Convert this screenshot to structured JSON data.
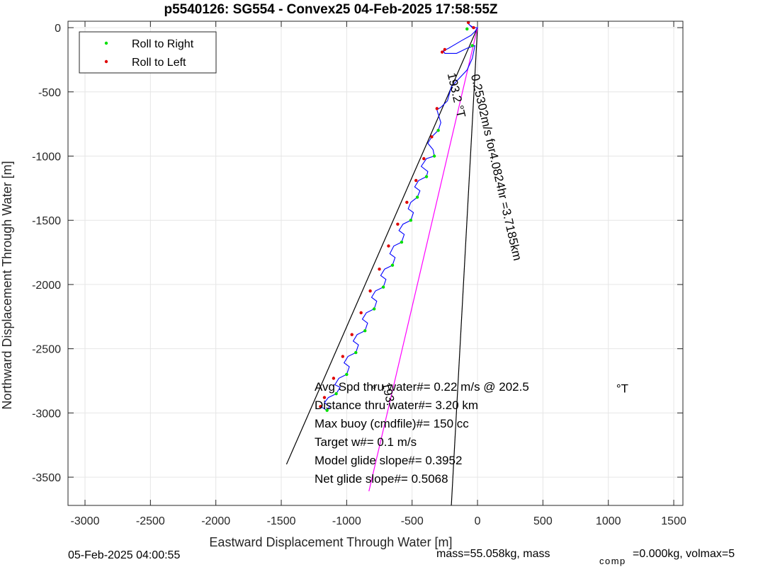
{
  "chart_data": {
    "type": "line",
    "title": "p5540126: SG554 - Convex25 04-Feb-2025 17:58:55Z",
    "xlabel": "Eastward Displacement Through Water [m]",
    "ylabel": "Northward Displacement Through Water [m]",
    "xlim": [
      -3130,
      1570
    ],
    "ylim": [
      -3720,
      50
    ],
    "xticks": [
      -3000,
      -2500,
      -2000,
      -1500,
      -1000,
      -500,
      0,
      500,
      1000,
      1500
    ],
    "yticks": [
      0,
      -500,
      -1000,
      -1500,
      -2000,
      -2500,
      -3000,
      -3500
    ],
    "grid": true,
    "legend_position": "top-left",
    "legend": [
      {
        "label": "Roll to Right",
        "color": "#00e000"
      },
      {
        "label": "Roll to Left",
        "color": "#e00000"
      }
    ],
    "track_color": "#0000ff",
    "track": [
      [
        -30,
        0
      ],
      [
        -60,
        20
      ],
      [
        -75,
        40
      ],
      [
        -70,
        30
      ],
      [
        -55,
        15
      ],
      [
        -40,
        0
      ],
      [
        -10,
        0
      ],
      [
        0,
        0
      ],
      [
        -20,
        -30
      ],
      [
        -50,
        -60
      ],
      [
        -120,
        -100
      ],
      [
        -220,
        -160
      ],
      [
        -260,
        -180
      ],
      [
        -250,
        -200
      ],
      [
        -160,
        -200
      ],
      [
        -80,
        -160
      ],
      [
        -20,
        -140
      ],
      [
        -40,
        -240
      ],
      [
        -80,
        -330
      ],
      [
        -200,
        -460
      ],
      [
        -230,
        -570
      ],
      [
        -280,
        -620
      ],
      [
        -310,
        -640
      ],
      [
        -280,
        -740
      ],
      [
        -300,
        -800
      ],
      [
        -350,
        -850
      ],
      [
        -380,
        -900
      ],
      [
        -340,
        -950
      ],
      [
        -330,
        -1000
      ],
      [
        -390,
        -1020
      ],
      [
        -430,
        -1080
      ],
      [
        -380,
        -1120
      ],
      [
        -390,
        -1160
      ],
      [
        -450,
        -1190
      ],
      [
        -480,
        -1240
      ],
      [
        -440,
        -1270
      ],
      [
        -460,
        -1320
      ],
      [
        -510,
        -1360
      ],
      [
        -530,
        -1410
      ],
      [
        -490,
        -1440
      ],
      [
        -510,
        -1500
      ],
      [
        -570,
        -1530
      ],
      [
        -600,
        -1580
      ],
      [
        -560,
        -1610
      ],
      [
        -580,
        -1670
      ],
      [
        -640,
        -1700
      ],
      [
        -670,
        -1760
      ],
      [
        -630,
        -1790
      ],
      [
        -650,
        -1850
      ],
      [
        -710,
        -1880
      ],
      [
        -740,
        -1930
      ],
      [
        -700,
        -1960
      ],
      [
        -720,
        -2020
      ],
      [
        -780,
        -2050
      ],
      [
        -810,
        -2100
      ],
      [
        -770,
        -2130
      ],
      [
        -790,
        -2190
      ],
      [
        -850,
        -2220
      ],
      [
        -880,
        -2270
      ],
      [
        -840,
        -2300
      ],
      [
        -860,
        -2360
      ],
      [
        -920,
        -2390
      ],
      [
        -950,
        -2440
      ],
      [
        -910,
        -2470
      ],
      [
        -930,
        -2530
      ],
      [
        -990,
        -2560
      ],
      [
        -1020,
        -2610
      ],
      [
        -980,
        -2640
      ],
      [
        -1000,
        -2700
      ],
      [
        -1060,
        -2730
      ],
      [
        -1090,
        -2780
      ],
      [
        -1050,
        -2800
      ],
      [
        -1080,
        -2850
      ],
      [
        -1140,
        -2880
      ],
      [
        -1170,
        -2920
      ],
      [
        -1130,
        -2950
      ],
      [
        -1150,
        -2980
      ],
      [
        -1200,
        -2950
      ]
    ],
    "roll_right": [
      [
        -80,
        -10
      ],
      [
        -40,
        -140
      ],
      [
        -300,
        -800
      ],
      [
        -330,
        -1000
      ],
      [
        -390,
        -1160
      ],
      [
        -460,
        -1320
      ],
      [
        -510,
        -1500
      ],
      [
        -580,
        -1670
      ],
      [
        -650,
        -1850
      ],
      [
        -720,
        -2020
      ],
      [
        -790,
        -2190
      ],
      [
        -860,
        -2360
      ],
      [
        -930,
        -2530
      ],
      [
        -1000,
        -2700
      ],
      [
        -1080,
        -2850
      ],
      [
        -1150,
        -2980
      ]
    ],
    "roll_left": [
      [
        -70,
        40
      ],
      [
        -30,
        0
      ],
      [
        -250,
        -170
      ],
      [
        -270,
        -190
      ],
      [
        -310,
        -630
      ],
      [
        -350,
        -850
      ],
      [
        -410,
        -1020
      ],
      [
        -470,
        -1190
      ],
      [
        -540,
        -1360
      ],
      [
        -610,
        -1530
      ],
      [
        -680,
        -1700
      ],
      [
        -750,
        -1880
      ],
      [
        -820,
        -2050
      ],
      [
        -890,
        -2220
      ],
      [
        -960,
        -2390
      ],
      [
        -1030,
        -2560
      ],
      [
        -1100,
        -2730
      ],
      [
        -1170,
        -2880
      ],
      [
        -1200,
        -2950
      ]
    ],
    "reference_lines": [
      {
        "color": "#000000",
        "points": [
          [
            0,
            0
          ],
          [
            -1460,
            -3400
          ]
        ]
      },
      {
        "color": "#000000",
        "points": [
          [
            0,
            0
          ],
          [
            -200,
            -3720
          ]
        ]
      },
      {
        "color": "#ff00ff",
        "points": [
          [
            0,
            0
          ],
          [
            -830,
            -3610
          ]
        ]
      }
    ],
    "annotations": [
      {
        "text": "193.2 °T",
        "x": -230,
        "y": -360,
        "angle": -77
      },
      {
        "text": "0.25302m/s for4.0824hr =3.7185km",
        "x": -50,
        "y": -370,
        "angle": -77
      },
      {
        "text": "193.",
        "x": -730,
        "y": -2770,
        "angle": -77
      },
      {
        "text": "°",
        "x": -810,
        "y": -2850,
        "angle": 0
      },
      {
        "text": "°T",
        "x": 1060,
        "y": -2840,
        "angle": 0
      }
    ],
    "stats": [
      "Avg Spd thru water#=  0.22 m/s @ 202.5",
      "Distance thru water#=  3.20 km",
      "Max buoy (cmdfile)#= 150 cc",
      "Target w#= 0.1 m/s",
      "Model glide slope#= 0.3952",
      "Net glide slope#= 0.5068"
    ]
  },
  "footer": {
    "timestamp": "05-Feb-2025 04:00:55",
    "mass_text": "mass=55.058kg, mass",
    "subscript": "comp",
    "mass_rest": "=0.000kg, volmax=5"
  }
}
